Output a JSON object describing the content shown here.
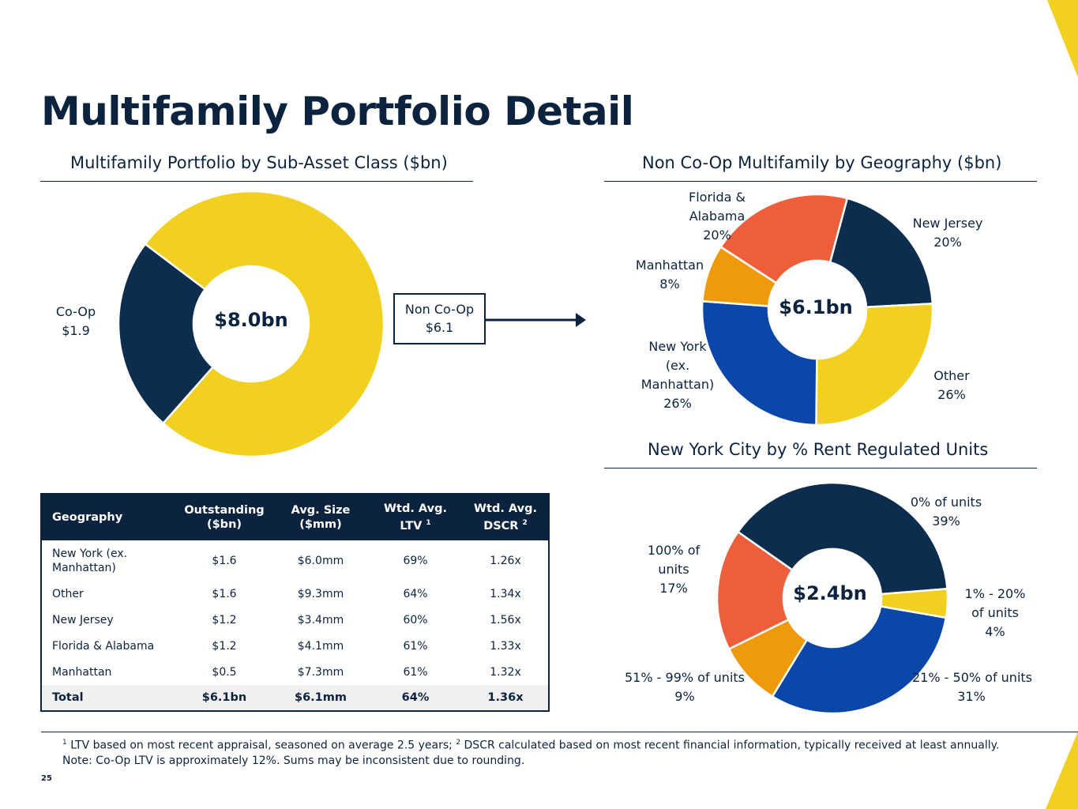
{
  "page": {
    "title": "Multifamily Portfolio Detail",
    "page_number": "25",
    "accent_color": "#f2d020"
  },
  "sections": {
    "sub_asset": "Multifamily Portfolio by Sub-Asset Class ($bn)",
    "geography": "Non Co-Op Multifamily by Geography ($bn)",
    "rent_regulated": "New York City by % Rent Regulated Units"
  },
  "callout": {
    "line1": "Non Co-Op",
    "line2": "$6.1"
  },
  "chart_data": [
    {
      "type": "pie",
      "variant": "donut",
      "center_label": "$8.0bn",
      "slices": [
        {
          "label": "Co-Op",
          "value_label": "$1.9",
          "value": 1.9,
          "color": "#0c2d4e"
        },
        {
          "label": "Non Co-Op",
          "value_label": "$6.1",
          "value": 6.1,
          "color": "#f2d020"
        }
      ]
    },
    {
      "type": "pie",
      "variant": "donut",
      "center_label": "$6.1bn",
      "slices": [
        {
          "label": "New Jersey",
          "value_label": "20%",
          "value": 20,
          "color": "#0c2d4e"
        },
        {
          "label": "Other",
          "value_label": "26%",
          "value": 26,
          "color": "#f2d020"
        },
        {
          "label": "New York (ex. Manhattan)",
          "value_label": "26%",
          "value": 26,
          "color": "#0a47a8"
        },
        {
          "label": "Manhattan",
          "value_label": "8%",
          "value": 8,
          "color": "#ef9a0b"
        },
        {
          "label": "Florida & Alabama",
          "value_label": "20%",
          "value": 20,
          "color": "#ef5e3b"
        }
      ]
    },
    {
      "type": "pie",
      "variant": "donut",
      "center_label": "$2.4bn",
      "slices": [
        {
          "label": "0% of units",
          "value_label": "39%",
          "value": 39,
          "color": "#0c2d4e"
        },
        {
          "label": "1% - 20% of units",
          "value_label": "4%",
          "value": 4,
          "color": "#f2d020"
        },
        {
          "label": "21% - 50% of units",
          "value_label": "31%",
          "value": 31,
          "color": "#0a47a8"
        },
        {
          "label": "51% - 99% of units",
          "value_label": "9%",
          "value": 9,
          "color": "#ef9a0b"
        },
        {
          "label": "100% of units",
          "value_label": "17%",
          "value": 17,
          "color": "#ef5e3b"
        }
      ]
    },
    {
      "type": "table",
      "columns": [
        "Geography",
        "Outstanding ($bn)",
        "Avg. Size ($mm)",
        "Wtd. Avg. LTV",
        "Wtd. Avg. DSCR"
      ],
      "column_sups": [
        "",
        "",
        "",
        "1",
        "2"
      ],
      "rows": [
        [
          "New York (ex. Manhattan)",
          "$1.6",
          "$6.0mm",
          "69%",
          "1.26x"
        ],
        [
          "Other",
          "$1.6",
          "$9.3mm",
          "64%",
          "1.34x"
        ],
        [
          "New Jersey",
          "$1.2",
          "$3.4mm",
          "60%",
          "1.56x"
        ],
        [
          "Florida & Alabama",
          "$1.2",
          "$4.1mm",
          "61%",
          "1.33x"
        ],
        [
          "Manhattan",
          "$0.5",
          "$7.3mm",
          "61%",
          "1.32x"
        ]
      ],
      "total": [
        "Total",
        "$6.1bn",
        "$6.1mm",
        "64%",
        "1.36x"
      ]
    }
  ],
  "footnotes": {
    "sup1": "1",
    "note1": "LTV based on most recent appraisal, seasoned on average 2.5 years;",
    "sup2": "2",
    "note2": "DSCR calculated based on most recent financial information, typically received at least annually.",
    "line2": "Note: Co-Op LTV is approximately 12%.  Sums may be inconsistent due to rounding."
  }
}
